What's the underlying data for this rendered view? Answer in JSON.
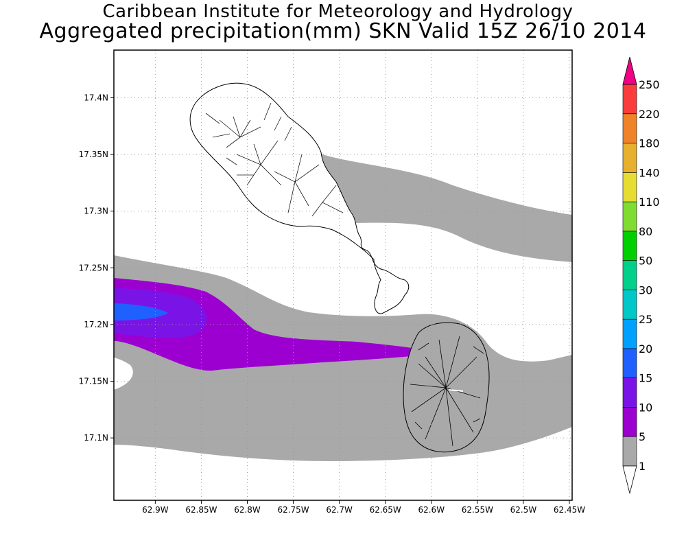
{
  "title": {
    "line1": "Caribbean Institute for Meteorology and Hydrology",
    "line2": "Aggregated precipitation(mm) SKN Valid 15Z 26/10 2014"
  },
  "map": {
    "lon_range": [
      -62.945,
      -62.447
    ],
    "lat_range": [
      17.045,
      17.442
    ],
    "lon_ticks": [
      {
        "value": -62.9,
        "label": "62.9W"
      },
      {
        "value": -62.85,
        "label": "62.85W"
      },
      {
        "value": -62.8,
        "label": "62.8W"
      },
      {
        "value": -62.75,
        "label": "62.75W"
      },
      {
        "value": -62.7,
        "label": "62.7W"
      },
      {
        "value": -62.65,
        "label": "62.65W"
      },
      {
        "value": -62.6,
        "label": "62.6W"
      },
      {
        "value": -62.55,
        "label": "62.55W"
      },
      {
        "value": -62.5,
        "label": "62.5W"
      },
      {
        "value": -62.45,
        "label": "62.45W"
      }
    ],
    "lat_ticks": [
      {
        "value": 17.1,
        "label": "17.1N"
      },
      {
        "value": 17.15,
        "label": "17.15N"
      },
      {
        "value": 17.2,
        "label": "17.2N"
      },
      {
        "value": 17.25,
        "label": "17.25N"
      },
      {
        "value": 17.3,
        "label": "17.3N"
      },
      {
        "value": 17.35,
        "label": "17.35N"
      },
      {
        "value": 17.4,
        "label": "17.4N"
      }
    ],
    "grid": "dotted",
    "islands": [
      "Saint Kitts",
      "Nevis"
    ]
  },
  "colorbar": {
    "levels": [
      {
        "label": "1",
        "color": "#ffffff"
      },
      {
        "label": "5",
        "color": "#a9a9a9"
      },
      {
        "label": "10",
        "color": "#9c00d0"
      },
      {
        "label": "15",
        "color": "#7a14e6"
      },
      {
        "label": "20",
        "color": "#2060ff"
      },
      {
        "label": "25",
        "color": "#00a0ff"
      },
      {
        "label": "30",
        "color": "#00c8c8"
      },
      {
        "label": "50",
        "color": "#00d08a"
      },
      {
        "label": "80",
        "color": "#00d000"
      },
      {
        "label": "110",
        "color": "#80dc30"
      },
      {
        "label": "140",
        "color": "#e6dc32"
      },
      {
        "label": "180",
        "color": "#e6af2d"
      },
      {
        "label": "220",
        "color": "#f08228"
      },
      {
        "label": "250",
        "color": "#fa3c3c"
      }
    ],
    "over_color": "#f00082",
    "under_color": "#ffffff"
  },
  "chart_data": {
    "type": "heatmap",
    "title": "Aggregated precipitation(mm) SKN Valid 15Z 26/10 2014",
    "units": "mm",
    "xlim": [
      -62.945,
      -62.447
    ],
    "ylim": [
      17.045,
      17.442
    ],
    "contour_levels": [
      1,
      5,
      10,
      15,
      20,
      25,
      30,
      50,
      80,
      110,
      140,
      180,
      220,
      250
    ],
    "regions": [
      {
        "band": "1-5 mm",
        "description_area": "band across south of map and northeast across Saint Kitts"
      },
      {
        "band": "5-10 mm",
        "area": "west edge near 17.18N-17.24N extending east to 62.6W"
      },
      {
        "band": "10-15 mm",
        "area": "west edge near 17.2N-17.23N"
      },
      {
        "band": "15-20 mm",
        "area": "west edge near 17.21N-17.22N"
      }
    ]
  }
}
